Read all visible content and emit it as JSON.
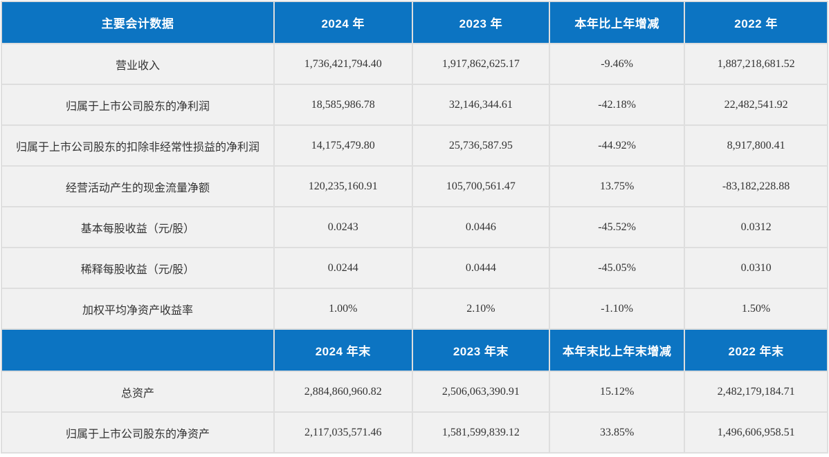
{
  "colors": {
    "header_bg": "#0c74c2",
    "header_text": "#ffffff",
    "cell_bg": "#f1f1f1",
    "grid": "#dedede",
    "cell_text": "#333333"
  },
  "annual_section": {
    "headers": {
      "metric": "主要会计数据",
      "y2024": "2024 年",
      "y2023": "2023 年",
      "change": "本年比上年增减",
      "y2022": "2022 年"
    },
    "rows": [
      {
        "label": "营业收入",
        "y2024": "1,736,421,794.40",
        "y2023": "1,917,862,625.17",
        "change": "-9.46%",
        "y2022": "1,887,218,681.52"
      },
      {
        "label": "归属于上市公司股东的净利润",
        "y2024": "18,585,986.78",
        "y2023": "32,146,344.61",
        "change": "-42.18%",
        "y2022": "22,482,541.92"
      },
      {
        "label": "归属于上市公司股东的扣除非经常性损益的净利润",
        "y2024": "14,175,479.80",
        "y2023": "25,736,587.95",
        "change": "-44.92%",
        "y2022": "8,917,800.41"
      },
      {
        "label": "经营活动产生的现金流量净额",
        "y2024": "120,235,160.91",
        "y2023": "105,700,561.47",
        "change": "13.75%",
        "y2022": "-83,182,228.88"
      },
      {
        "label": "基本每股收益（元/股）",
        "y2024": "0.0243",
        "y2023": "0.0446",
        "change": "-45.52%",
        "y2022": "0.0312"
      },
      {
        "label": "稀释每股收益（元/股）",
        "y2024": "0.0244",
        "y2023": "0.0444",
        "change": "-45.05%",
        "y2022": "0.0310"
      },
      {
        "label": "加权平均净资产收益率",
        "y2024": "1.00%",
        "y2023": "2.10%",
        "change": "-1.10%",
        "y2022": "1.50%"
      }
    ]
  },
  "period_end_section": {
    "headers": {
      "metric": "",
      "y2024": "2024 年末",
      "y2023": "2023 年末",
      "change": "本年末比上年末增减",
      "y2022": "2022 年末"
    },
    "rows": [
      {
        "label": "总资产",
        "y2024": "2,884,860,960.82",
        "y2023": "2,506,063,390.91",
        "change": "15.12%",
        "y2022": "2,482,179,184.71"
      },
      {
        "label": "归属于上市公司股东的净资产",
        "y2024": "2,117,035,571.46",
        "y2023": "1,581,599,839.12",
        "change": "33.85%",
        "y2022": "1,496,606,958.51"
      }
    ]
  }
}
